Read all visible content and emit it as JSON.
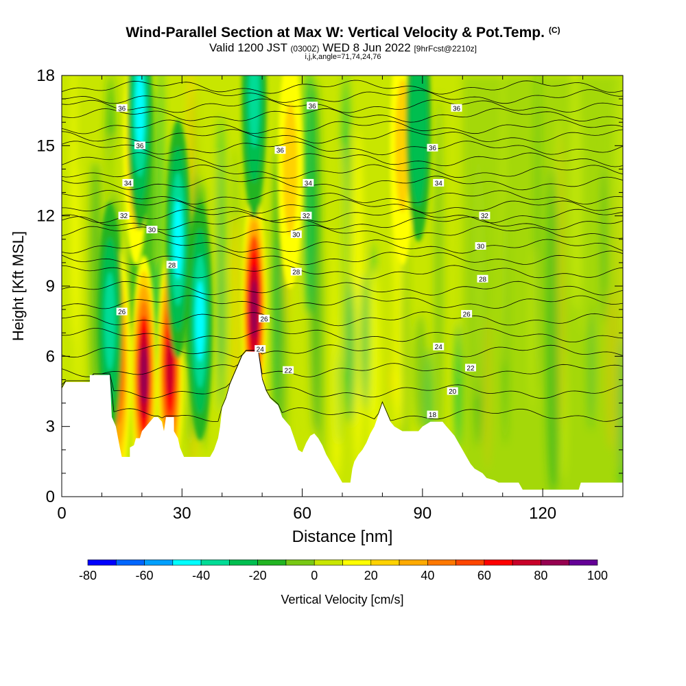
{
  "header": {
    "title": "Wind-Parallel Section at Max W: Vertical Velocity & Pot.Temp.",
    "copyright": "(C)",
    "valid_prefix": "Valid 1200 JST",
    "valid_utc": "(0300Z)",
    "valid_date": "WED 8 Jun 2022",
    "forecast": "[9hrFcst@2210z]",
    "indices": "i,j,k,angle=71,74,24,76"
  },
  "chart_data": {
    "type": "heatmap",
    "xlabel": "Distance [nm]",
    "ylabel": "Height [Kft MSL]",
    "xlim": [
      0,
      140
    ],
    "ylim": [
      0,
      18
    ],
    "x_ticks": [
      0,
      30,
      60,
      90,
      120
    ],
    "y_ticks": [
      0,
      3,
      6,
      9,
      12,
      15,
      18
    ],
    "colorbar": {
      "label": "Vertical Velocity [cm/s]",
      "ticks": [
        -80,
        -60,
        -40,
        -20,
        0,
        20,
        40,
        60,
        80,
        100
      ],
      "bins": [
        -80,
        -70,
        -60,
        -50,
        -40,
        -30,
        -20,
        -10,
        0,
        10,
        20,
        30,
        40,
        50,
        60,
        70,
        80,
        90,
        100
      ],
      "colors": [
        "#0000ff",
        "#0066ff",
        "#00a0ff",
        "#00ffff",
        "#00dc96",
        "#00be50",
        "#22b422",
        "#78c814",
        "#c8e600",
        "#ffff00",
        "#ffd200",
        "#ffaa00",
        "#ff7800",
        "#ff4600",
        "#ff0000",
        "#c80028",
        "#960050",
        "#640096"
      ]
    },
    "terrain_kft": [
      [
        0,
        4.6
      ],
      [
        1,
        4.9
      ],
      [
        7,
        4.9
      ],
      [
        7,
        5.2
      ],
      [
        12,
        5.2
      ],
      [
        12.5,
        3.4
      ],
      [
        13.5,
        3.0
      ],
      [
        14.5,
        2.1
      ],
      [
        15,
        1.7
      ],
      [
        17,
        1.7
      ],
      [
        17,
        2.1
      ],
      [
        18,
        2.2
      ],
      [
        18.5,
        2.5
      ],
      [
        19.5,
        2.5
      ],
      [
        20,
        2.8
      ],
      [
        21,
        3.0
      ],
      [
        22,
        3.2
      ],
      [
        23,
        3.4
      ],
      [
        24,
        3.4
      ],
      [
        25,
        3.2
      ],
      [
        25.5,
        2.8
      ],
      [
        26,
        3.4
      ],
      [
        28,
        3.4
      ],
      [
        28,
        2.8
      ],
      [
        29,
        2.5
      ],
      [
        29.5,
        2.1
      ],
      [
        30,
        1.9
      ],
      [
        30.5,
        1.7
      ],
      [
        37,
        1.7
      ],
      [
        38,
        2.0
      ],
      [
        39,
        2.5
      ],
      [
        39.5,
        3.0
      ],
      [
        40,
        3.8
      ],
      [
        41,
        4.2
      ],
      [
        42,
        4.8
      ],
      [
        43,
        5.2
      ],
      [
        44,
        5.6
      ],
      [
        45,
        6.0
      ],
      [
        46,
        6.2
      ],
      [
        49,
        6.2
      ],
      [
        49.5,
        5.6
      ],
      [
        50,
        5.0
      ],
      [
        51,
        4.5
      ],
      [
        52,
        4.2
      ],
      [
        54,
        3.9
      ],
      [
        55,
        3.4
      ],
      [
        57,
        3.0
      ],
      [
        58,
        2.5
      ],
      [
        59,
        2.0
      ],
      [
        60,
        1.9
      ],
      [
        61,
        2.3
      ],
      [
        62,
        2.6
      ],
      [
        63,
        2.7
      ],
      [
        64,
        2.5
      ],
      [
        65,
        2.2
      ],
      [
        66,
        1.8
      ],
      [
        67,
        1.5
      ],
      [
        68,
        1.2
      ],
      [
        69,
        0.9
      ],
      [
        70,
        0.6
      ],
      [
        72,
        0.6
      ],
      [
        72.5,
        1.2
      ],
      [
        73,
        1.5
      ],
      [
        74,
        1.8
      ],
      [
        75,
        2.0
      ],
      [
        76,
        2.3
      ],
      [
        77,
        2.7
      ],
      [
        78,
        3.0
      ],
      [
        79,
        3.5
      ],
      [
        80,
        4.0
      ],
      [
        81,
        3.6
      ],
      [
        82,
        3.2
      ],
      [
        83,
        3.0
      ],
      [
        84,
        2.9
      ],
      [
        85,
        2.8
      ],
      [
        89,
        2.8
      ],
      [
        90,
        3.0
      ],
      [
        92,
        3.2
      ],
      [
        95,
        3.2
      ],
      [
        96,
        3.0
      ],
      [
        97,
        2.8
      ],
      [
        98,
        2.6
      ],
      [
        99,
        2.3
      ],
      [
        100,
        2.0
      ],
      [
        101,
        1.7
      ],
      [
        102,
        1.4
      ],
      [
        103,
        1.2
      ],
      [
        104,
        1.1
      ],
      [
        105,
        1.0
      ],
      [
        106,
        0.8
      ],
      [
        108,
        0.7
      ],
      [
        109,
        0.6
      ],
      [
        114,
        0.6
      ],
      [
        115,
        0.3
      ],
      [
        121,
        0.3
      ],
      [
        123,
        0.3
      ],
      [
        129,
        0.3
      ],
      [
        129.5,
        0.6
      ],
      [
        140,
        0.6
      ]
    ],
    "updraft_cores": [
      {
        "x": 14,
        "y": 5.5,
        "w": 58
      },
      {
        "x": 20.5,
        "y": 5.2,
        "w": 82
      },
      {
        "x": 27,
        "y": 5.5,
        "w": 78
      },
      {
        "x": 48,
        "y": 8,
        "w": 85
      },
      {
        "x": 18.5,
        "y": 15,
        "w": 35
      },
      {
        "x": 57,
        "y": 14,
        "w": 25
      },
      {
        "x": 85,
        "y": 15,
        "w": 20
      }
    ],
    "downdraft_cores": [
      {
        "x": 12,
        "y": 7.5,
        "w": -40
      },
      {
        "x": 19.5,
        "y": 16.5,
        "w": -50
      },
      {
        "x": 29,
        "y": 11,
        "w": -45
      },
      {
        "x": 34.5,
        "y": 7.5,
        "w": -45
      },
      {
        "x": 48,
        "y": 17,
        "w": -35
      },
      {
        "x": 89,
        "y": 16,
        "w": -30
      }
    ],
    "theta_labels": [
      {
        "text": "36",
        "x": 15,
        "y": 16.6
      },
      {
        "text": "36",
        "x": 19.5,
        "y": 15.0
      },
      {
        "text": "34",
        "x": 16.5,
        "y": 13.4
      },
      {
        "text": "32",
        "x": 15.5,
        "y": 12.0
      },
      {
        "text": "30",
        "x": 22.5,
        "y": 11.4
      },
      {
        "text": "28",
        "x": 27.5,
        "y": 9.9
      },
      {
        "text": "26",
        "x": 15,
        "y": 7.9
      },
      {
        "text": "36",
        "x": 62.5,
        "y": 16.7
      },
      {
        "text": "36",
        "x": 54.5,
        "y": 14.8
      },
      {
        "text": "34",
        "x": 61.5,
        "y": 13.4
      },
      {
        "text": "32",
        "x": 61,
        "y": 12.0
      },
      {
        "text": "30",
        "x": 58.5,
        "y": 11.2
      },
      {
        "text": "28",
        "x": 58.5,
        "y": 9.6
      },
      {
        "text": "26",
        "x": 50.5,
        "y": 7.6
      },
      {
        "text": "24",
        "x": 49.5,
        "y": 6.3
      },
      {
        "text": "22",
        "x": 56.5,
        "y": 5.4
      },
      {
        "text": "36",
        "x": 98.5,
        "y": 16.6
      },
      {
        "text": "36",
        "x": 92.5,
        "y": 14.9
      },
      {
        "text": "34",
        "x": 94,
        "y": 13.4
      },
      {
        "text": "32",
        "x": 105.5,
        "y": 12.0
      },
      {
        "text": "30",
        "x": 104.5,
        "y": 10.7
      },
      {
        "text": "28",
        "x": 105,
        "y": 9.3
      },
      {
        "text": "26",
        "x": 101,
        "y": 7.8
      },
      {
        "text": "24",
        "x": 94,
        "y": 6.4
      },
      {
        "text": "22",
        "x": 102,
        "y": 5.5
      },
      {
        "text": "20",
        "x": 97.5,
        "y": 4.5
      },
      {
        "text": "18",
        "x": 92.5,
        "y": 3.5
      }
    ],
    "theta_levels_kft": [
      3.5,
      4.5,
      5.4,
      6.2,
      6.9,
      7.6,
      8.3,
      8.9,
      9.6,
      10.2,
      10.7,
      11.3,
      11.7,
      12.0,
      12.4,
      12.8,
      13.4,
      13.9,
      14.4,
      14.9,
      15.4,
      15.8,
      16.3,
      16.7,
      17.1,
      17.5
    ]
  }
}
